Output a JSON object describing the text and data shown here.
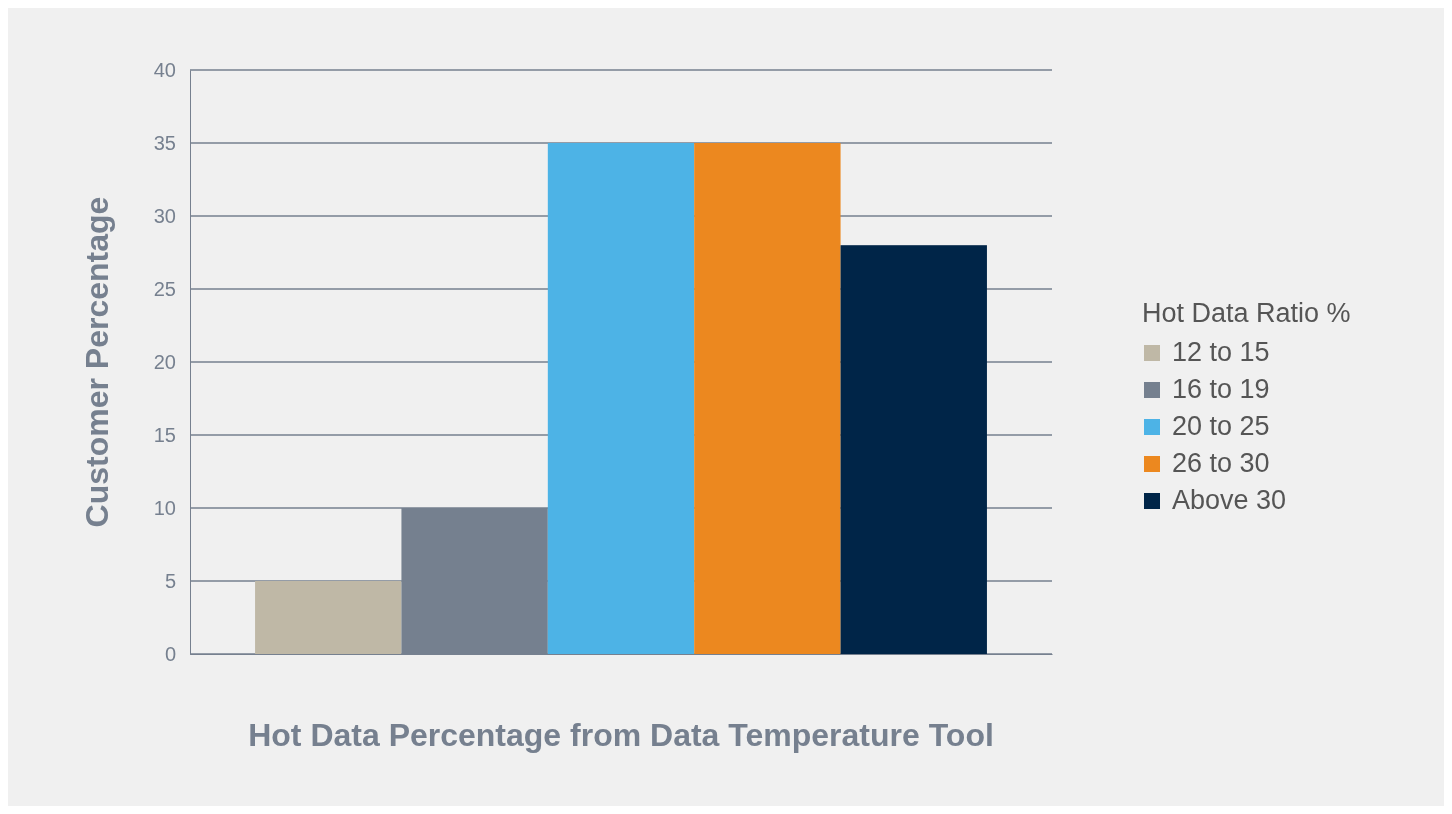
{
  "chart_data": {
    "type": "bar",
    "xlabel": "Hot Data Percentage from Data Temperature Tool",
    "ylabel": "Customer Percentage",
    "legend_title": "Hot Data Ratio %",
    "categories": [
      null
    ],
    "series": [
      {
        "name": "12 to 15",
        "color": "#bfb8a6",
        "values": [
          5
        ]
      },
      {
        "name": "16 to 19",
        "color": "#75808f",
        "values": [
          10
        ]
      },
      {
        "name": "20 to 25",
        "color": "#4db3e6",
        "values": [
          35
        ]
      },
      {
        "name": "26 to 30",
        "color": "#ec881f",
        "values": [
          35
        ]
      },
      {
        "name": "Above 30",
        "color": "#002548",
        "values": [
          28
        ]
      }
    ],
    "ylim": [
      0,
      40
    ],
    "yticks": [
      0,
      5,
      10,
      15,
      20,
      25,
      30,
      35,
      40
    ],
    "grid": true,
    "legend": "right"
  }
}
